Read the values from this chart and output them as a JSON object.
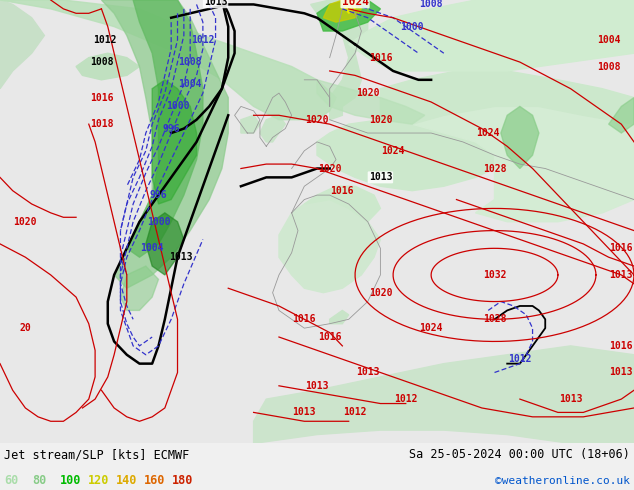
{
  "title_left": "Jet stream/SLP [kts] ECMWF",
  "title_right": "Sa 25-05-2024 00:00 UTC (18+06)",
  "credit": "©weatheronline.co.uk",
  "legend_values": [
    "60",
    "80",
    "100",
    "120",
    "140",
    "160",
    "180"
  ],
  "legend_colors": [
    "#aaddaa",
    "#88cc88",
    "#00bb00",
    "#cccc00",
    "#ddaa00",
    "#dd6600",
    "#cc2200"
  ],
  "figsize": [
    6.34,
    4.9
  ],
  "dpi": 100,
  "ocean_color": "#e8e8e8",
  "land_color": "#d8ecd8",
  "land_color2": "#c8e4c8",
  "font_size_title": 8.5,
  "font_size_legend": 8.5,
  "font_size_credit": 8,
  "font_size_label": 7,
  "bottom_bar_color": "#f0f0f0"
}
